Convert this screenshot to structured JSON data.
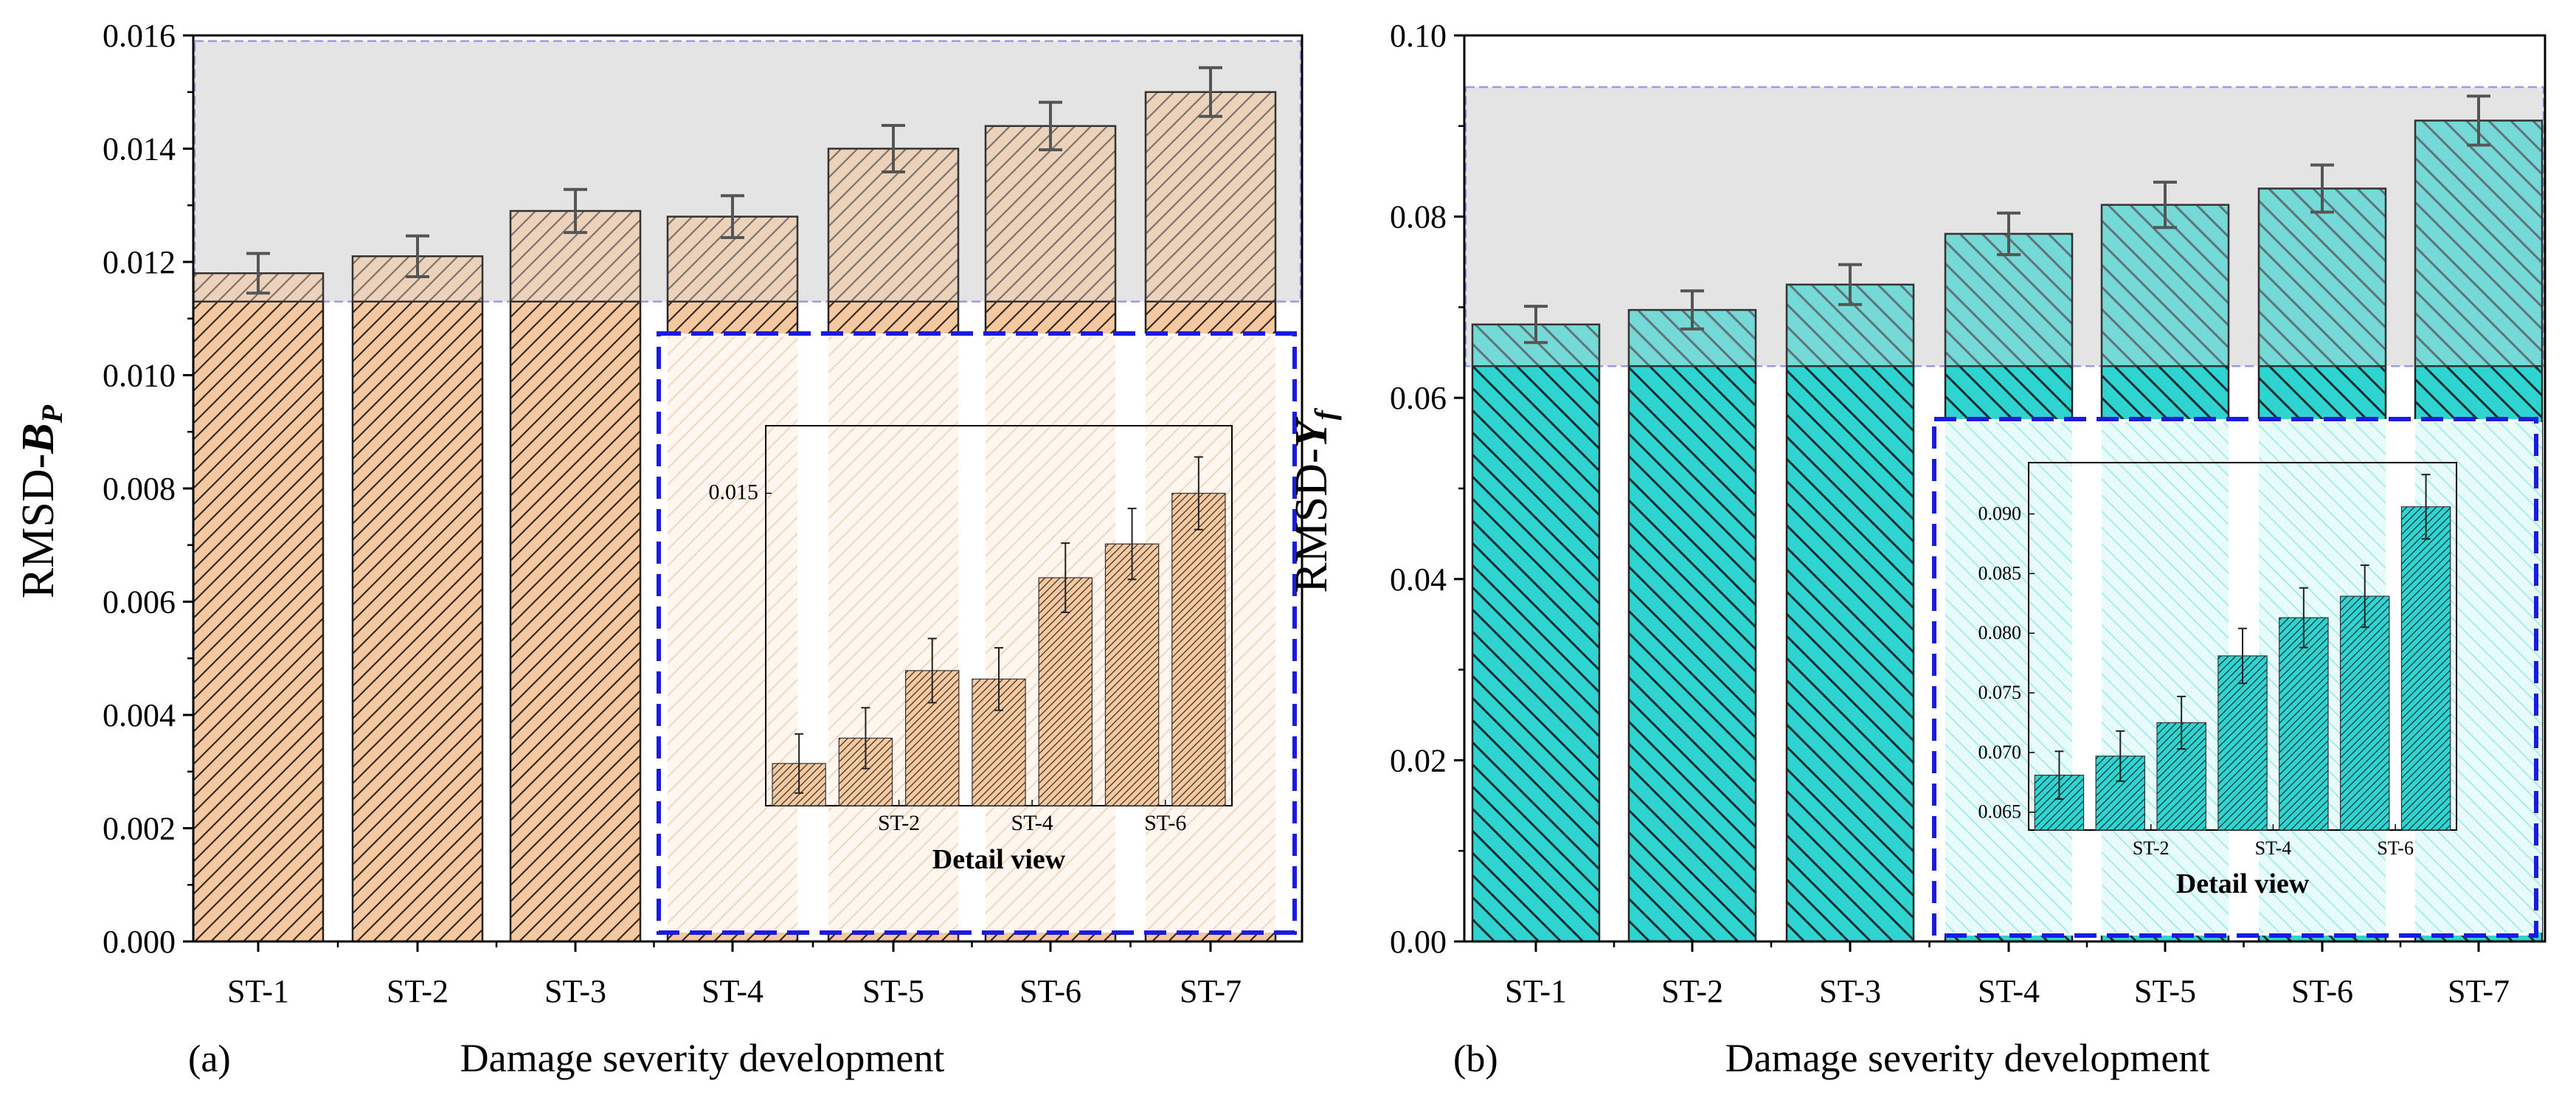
{
  "figure": {
    "panel_labels": [
      "(a)",
      "(b)"
    ],
    "shared_xlabel": "Damage severity development"
  },
  "colors": {
    "bar_a": "#f4c9a2",
    "bar_a_hatch": "#3a2a1e",
    "bar_b": "#2fd4d0",
    "bar_b_hatch": "#0b2e33",
    "highlight_fill": "#e0e0e0",
    "highlight_border": "#9a9ae6",
    "inset_border": "#1a1ae0",
    "error_bar": "#555555",
    "axis": "#000000"
  },
  "chart_data": [
    {
      "type": "bar",
      "panel": "(a)",
      "title": "",
      "xlabel": "Damage severity development",
      "ylabel": "RMSD-",
      "ylabel_symbol": "B",
      "ylabel_subscript": "P",
      "categories": [
        "ST-1",
        "ST-2",
        "ST-3",
        "ST-4",
        "ST-5",
        "ST-6",
        "ST-7"
      ],
      "values": [
        0.0118,
        0.0121,
        0.0129,
        0.0128,
        0.014,
        0.0144,
        0.015
      ],
      "errors": [
        0.00035,
        0.00036,
        0.00038,
        0.00037,
        0.00041,
        0.00042,
        0.00043
      ],
      "ylim": [
        0,
        0.016
      ],
      "yticks": [
        0,
        0.002,
        0.004,
        0.006,
        0.008,
        0.01,
        0.012,
        0.014,
        0.016
      ],
      "ytick_labels": [
        "0.000",
        "0.002",
        "0.004",
        "0.006",
        "0.008",
        "0.010",
        "0.012",
        "0.014",
        "0.016"
      ],
      "highlight_range": [
        0.0113,
        0.0159
      ],
      "inset": {
        "title": "Detail view",
        "ylim": [
          0.0113,
          0.0158
        ],
        "yticks": [
          0.015
        ],
        "ytick_labels": [
          "0.015"
        ],
        "xtick_labels": [
          "ST-2",
          "ST-4",
          "ST-6"
        ]
      }
    },
    {
      "type": "bar",
      "panel": "(b)",
      "title": "",
      "xlabel": "Damage severity development",
      "ylabel": "RMSD-",
      "ylabel_symbol": "Y",
      "ylabel_subscript": "f",
      "categories": [
        "ST-1",
        "ST-2",
        "ST-3",
        "ST-4",
        "ST-5",
        "ST-6",
        "ST-7"
      ],
      "values": [
        0.0681,
        0.0697,
        0.0725,
        0.0781,
        0.0813,
        0.0831,
        0.0906
      ],
      "errors": [
        0.002,
        0.0021,
        0.0022,
        0.0023,
        0.0025,
        0.0026,
        0.0027
      ],
      "ylim": [
        0,
        0.1
      ],
      "yticks": [
        0,
        0.02,
        0.04,
        0.06,
        0.08,
        0.1
      ],
      "ytick_labels": [
        "0.00",
        "0.02",
        "0.04",
        "0.06",
        "0.08",
        "0.10"
      ],
      "highlight_range": [
        0.0635,
        0.0943
      ],
      "inset": {
        "title": "Detail view",
        "ylim": [
          0.0635,
          0.0943
        ],
        "yticks": [
          0.065,
          0.07,
          0.075,
          0.08,
          0.085,
          0.09
        ],
        "ytick_labels": [
          "0.065",
          "0.070",
          "0.075",
          "0.080",
          "0.085",
          "0.090"
        ],
        "xtick_labels": [
          "ST-2",
          "ST-4",
          "ST-6"
        ]
      }
    }
  ]
}
